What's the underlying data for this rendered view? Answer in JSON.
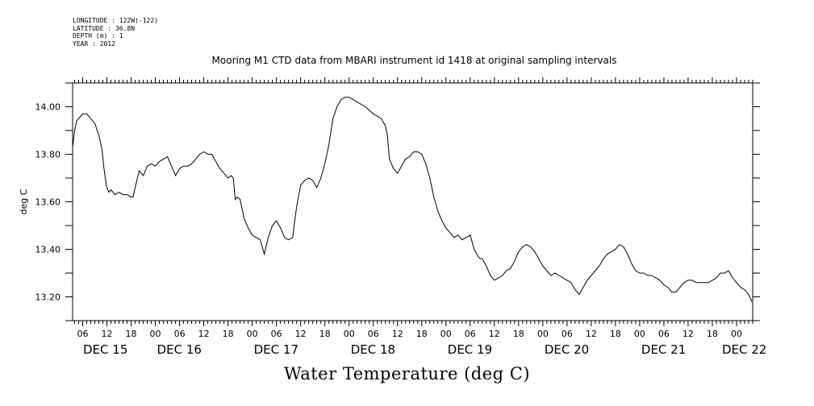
{
  "metadata": {
    "longitude": "LONGITUDE : 122W(-122)",
    "latitude": "LATITUDE : 36.8N",
    "depth": "DEPTH (m) : 1",
    "year": "YEAR : 2012"
  },
  "chart_data": {
    "type": "line",
    "title": "Mooring M1 CTD data from MBARI instrument id 1418 at original sampling intervals",
    "xlabel": "Water Temperature (deg C)",
    "ylabel": "deg C",
    "ylim": [
      13.1,
      14.1
    ],
    "y_ticks": [
      13.2,
      13.4,
      13.6,
      13.8,
      14.0
    ],
    "y_tick_labels": [
      "13.20",
      "13.40",
      "13.60",
      "13.80",
      "14.00"
    ],
    "x_unit": "hours since DEC 15 00:00",
    "xlim": [
      3.5,
      172
    ],
    "x_hour_ticks": [
      6,
      12,
      18,
      24,
      30,
      36,
      42,
      48,
      54,
      60,
      66,
      72,
      78,
      84,
      90,
      96,
      102,
      108,
      114,
      120,
      126,
      132,
      138,
      144,
      150,
      156,
      162,
      168
    ],
    "x_hour_tick_labels": [
      "06",
      "12",
      "18",
      "00",
      "06",
      "12",
      "18",
      "00",
      "06",
      "12",
      "18",
      "00",
      "06",
      "12",
      "18",
      "00",
      "06",
      "12",
      "18",
      "00",
      "06",
      "12",
      "18",
      "00",
      "06",
      "12",
      "18",
      "00"
    ],
    "x_day_labels": [
      {
        "x": 0,
        "label": "DEC 15"
      },
      {
        "x": 24,
        "label": "DEC 16"
      },
      {
        "x": 48,
        "label": "DEC 17"
      },
      {
        "x": 72,
        "label": "DEC 18"
      },
      {
        "x": 96,
        "label": "DEC 19"
      },
      {
        "x": 120,
        "label": "DEC 20"
      },
      {
        "x": 144,
        "label": "DEC 21"
      },
      {
        "x": 168,
        "label": "DEC 22"
      }
    ],
    "series": [
      {
        "x": [
          3.5,
          4.0,
          4.5,
          5.0,
          6.0,
          7.0,
          8.0,
          9.0,
          10.0,
          10.8,
          11.2,
          11.6,
          12.0,
          12.5,
          13.0,
          14.0,
          15.0,
          16.0,
          17.0,
          18.0,
          18.5,
          19.0,
          20.0,
          21.0,
          22.0,
          23.0,
          24.0,
          25.0,
          26.0,
          27.0,
          28.0,
          29.0,
          30.0,
          31.0,
          32.0,
          33.0,
          34.0,
          35.0,
          36.0,
          37.0,
          38.0,
          39.0,
          40.0,
          41.0,
          42.0,
          42.8,
          43.3,
          43.8,
          44.3,
          45.0,
          46.0,
          47.0,
          48.0,
          49.0,
          50.0,
          51.0,
          52.0,
          53.0,
          54.0,
          55.0,
          56.0,
          57.0,
          58.0,
          59.0,
          60.0,
          61.0,
          62.0,
          63.0,
          64.0,
          65.0,
          66.0,
          67.0,
          68.0,
          69.0,
          70.0,
          71.0,
          72.0,
          74.0,
          76.0,
          78.0,
          80.0,
          81.0,
          81.5,
          82.0,
          83.0,
          84.0,
          85.0,
          86.0,
          87.0,
          88.0,
          89.0,
          90.0,
          91.0,
          92.0,
          93.0,
          94.0,
          95.0,
          96.0,
          97.0,
          98.0,
          99.0,
          100.0,
          101.0,
          102.0,
          103.0,
          104.0,
          104.5,
          105.0,
          106.0,
          107.0,
          108.0,
          109.0,
          110.0,
          111.0,
          112.0,
          113.0,
          114.0,
          115.0,
          116.0,
          117.0,
          118.0,
          119.0,
          120.0,
          121.0,
          122.0,
          123.0,
          124.0,
          125.0,
          126.0,
          127.0,
          128.0,
          129.0,
          130.0,
          131.0,
          132.0,
          133.0,
          134.0,
          135.0,
          136.0,
          137.0,
          138.0,
          139.0,
          140.0,
          141.0,
          142.0,
          143.0,
          144.0,
          145.0,
          146.0,
          147.0,
          148.0,
          149.0,
          150.0,
          151.0,
          152.0,
          153.0,
          154.0,
          155.0,
          156.0,
          157.0,
          158.0,
          159.0,
          160.0,
          161.0,
          162.0,
          163.0,
          164.0,
          165.0,
          166.0,
          167.0,
          168.0,
          169.0,
          170.0,
          171.0,
          171.8
        ],
        "y": [
          13.83,
          13.9,
          13.94,
          13.95,
          13.97,
          13.97,
          13.95,
          13.93,
          13.88,
          13.82,
          13.75,
          13.7,
          13.66,
          13.64,
          13.65,
          13.63,
          13.64,
          13.63,
          13.63,
          13.62,
          13.62,
          13.66,
          13.73,
          13.71,
          13.75,
          13.76,
          13.75,
          13.77,
          13.78,
          13.79,
          13.75,
          13.71,
          13.74,
          13.75,
          13.75,
          13.76,
          13.78,
          13.8,
          13.81,
          13.8,
          13.8,
          13.77,
          13.74,
          13.72,
          13.7,
          13.71,
          13.7,
          13.61,
          13.62,
          13.61,
          13.53,
          13.49,
          13.46,
          13.45,
          13.44,
          13.38,
          13.45,
          13.5,
          13.52,
          13.49,
          13.45,
          13.44,
          13.45,
          13.58,
          13.67,
          13.69,
          13.7,
          13.69,
          13.66,
          13.7,
          13.76,
          13.84,
          13.95,
          14.0,
          14.03,
          14.04,
          14.04,
          14.02,
          14.0,
          13.97,
          13.95,
          13.92,
          13.88,
          13.78,
          13.74,
          13.72,
          13.75,
          13.78,
          13.79,
          13.81,
          13.81,
          13.8,
          13.76,
          13.7,
          13.62,
          13.56,
          13.52,
          13.49,
          13.47,
          13.45,
          13.46,
          13.44,
          13.45,
          13.46,
          13.4,
          13.37,
          13.36,
          13.36,
          13.33,
          13.29,
          13.27,
          13.28,
          13.29,
          13.31,
          13.32,
          13.35,
          13.39,
          13.41,
          13.42,
          13.41,
          13.39,
          13.36,
          13.33,
          13.31,
          13.29,
          13.3,
          13.29,
          13.28,
          13.27,
          13.26,
          13.23,
          13.21,
          13.24,
          13.27,
          13.29,
          13.31,
          13.33,
          13.36,
          13.38,
          13.39,
          13.4,
          13.42,
          13.41,
          13.38,
          13.34,
          13.31,
          13.3,
          13.3,
          13.29,
          13.29,
          13.28,
          13.27,
          13.25,
          13.24,
          13.22,
          13.22,
          13.24,
          13.26,
          13.27,
          13.27,
          13.26,
          13.26,
          13.26,
          13.26,
          13.27,
          13.28,
          13.3,
          13.3,
          13.31,
          13.28,
          13.26,
          13.24,
          13.23,
          13.21,
          13.18
        ]
      }
    ]
  }
}
